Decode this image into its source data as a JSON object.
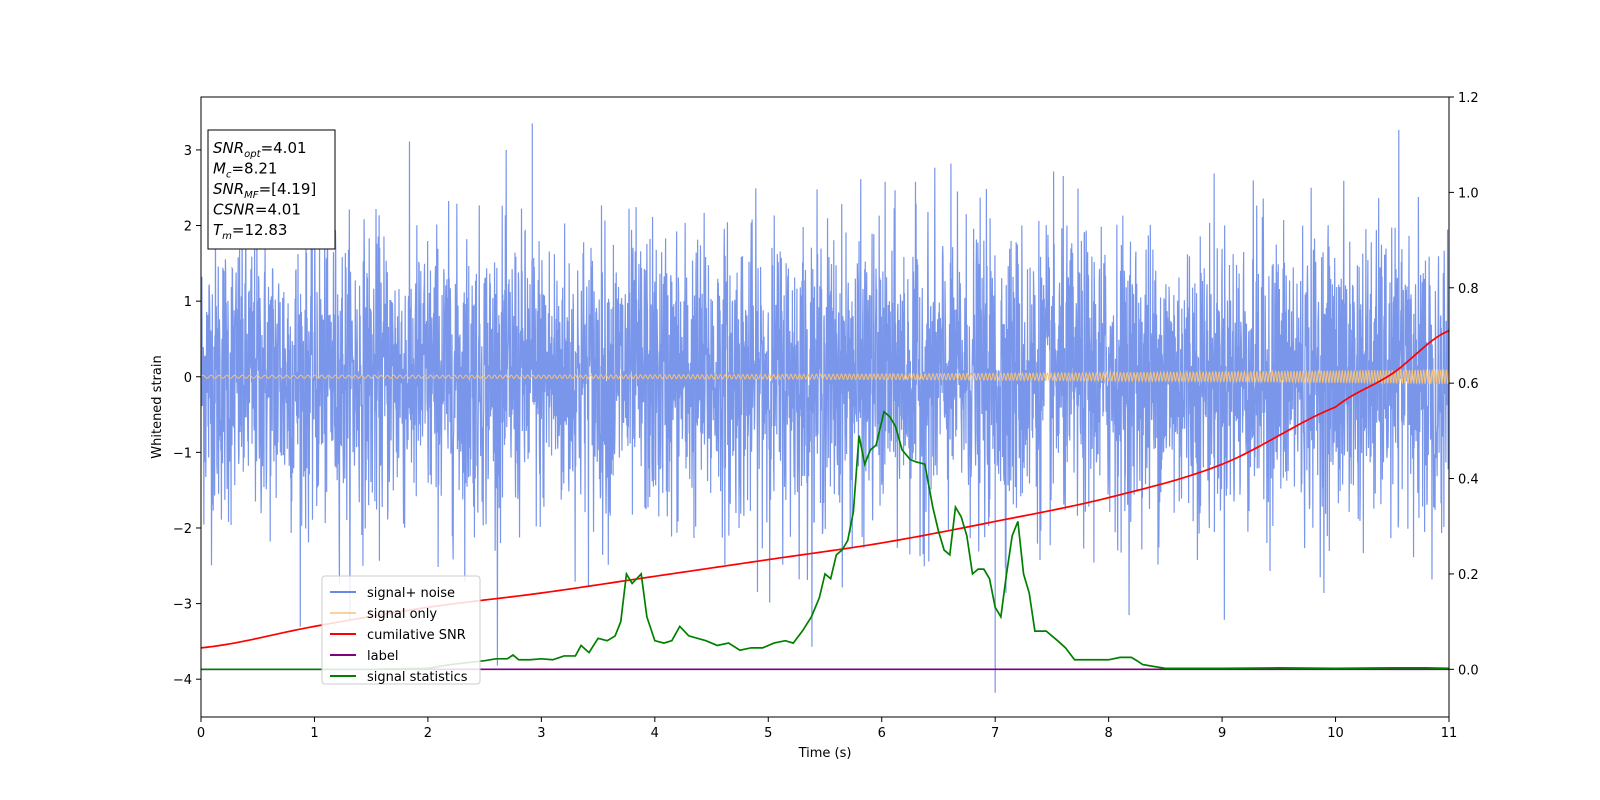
{
  "chart_data": {
    "type": "line",
    "xlabel": "Time (s)",
    "ylabel": "Whitened strain",
    "xlim": [
      0,
      11
    ],
    "ylim": [
      -4.5,
      3.7
    ],
    "y2lim": [
      -0.1,
      1.2
    ],
    "x_ticks": [
      0,
      1,
      2,
      3,
      4,
      5,
      6,
      7,
      8,
      9,
      10,
      11
    ],
    "y_ticks": [
      -4,
      -3,
      -2,
      -1,
      0,
      1,
      2,
      3
    ],
    "y2_ticks": [
      "0.0",
      "0.2",
      "0.4",
      "0.6",
      "0.8",
      "1.0",
      "1.2"
    ],
    "grid": false,
    "legend_position": "lower-left",
    "colors": {
      "noise": "#6688e8",
      "signal": "#f5c27a",
      "csnr": "#ff0000",
      "label": "#800080",
      "stat": "#008000"
    },
    "series": [
      {
        "name": "signal+ noise",
        "axis": "left",
        "description_values": "dense whitened noise, approx N(0,1) with spikes to about +3.3 and -4.2",
        "x_range": [
          0,
          11
        ],
        "y_extremes": {
          "max": 3.35,
          "min": -4.18
        }
      },
      {
        "name": "signal only",
        "axis": "left",
        "amplitude_start": 0.02,
        "amplitude_end": 0.1,
        "x_range": [
          0,
          11
        ]
      },
      {
        "name": "cumilative SNR",
        "axis": "right",
        "x": [
          0,
          1,
          2,
          3,
          4,
          5,
          6,
          7,
          8,
          9,
          10,
          10.5,
          11
        ],
        "y": [
          0.045,
          0.09,
          0.13,
          0.16,
          0.195,
          0.23,
          0.265,
          0.31,
          0.36,
          0.43,
          0.55,
          0.62,
          0.71
        ]
      },
      {
        "name": "label",
        "axis": "right",
        "x": [
          0,
          11
        ],
        "y": [
          0,
          0
        ]
      },
      {
        "name": "signal statistics",
        "axis": "right",
        "x": [
          0,
          0.5,
          1,
          1.5,
          2,
          2.2,
          2.5,
          2.6,
          2.7,
          2.75,
          2.8,
          2.9,
          3.0,
          3.1,
          3.2,
          3.3,
          3.35,
          3.42,
          3.5,
          3.58,
          3.65,
          3.7,
          3.75,
          3.8,
          3.88,
          3.93,
          4.0,
          4.08,
          4.15,
          4.22,
          4.3,
          4.45,
          4.55,
          4.65,
          4.75,
          4.85,
          4.95,
          5.05,
          5.15,
          5.22,
          5.3,
          5.38,
          5.45,
          5.5,
          5.55,
          5.6,
          5.65,
          5.7,
          5.75,
          5.8,
          5.85,
          5.9,
          5.95,
          6.02,
          6.07,
          6.12,
          6.18,
          6.25,
          6.3,
          6.38,
          6.45,
          6.5,
          6.55,
          6.6,
          6.65,
          6.7,
          6.75,
          6.8,
          6.85,
          6.9,
          6.95,
          7.0,
          7.05,
          7.1,
          7.15,
          7.2,
          7.25,
          7.3,
          7.35,
          7.45,
          7.5,
          7.55,
          7.62,
          7.7,
          7.8,
          7.9,
          8.0,
          8.1,
          8.2,
          8.25,
          8.3,
          8.5,
          9.0,
          9.5,
          10.0,
          10.5,
          10.8,
          11.0
        ],
        "y": [
          0.0,
          0.0,
          0.0,
          0.0,
          0.002,
          0.01,
          0.018,
          0.022,
          0.022,
          0.03,
          0.02,
          0.02,
          0.022,
          0.02,
          0.028,
          0.028,
          0.05,
          0.035,
          0.065,
          0.06,
          0.07,
          0.1,
          0.2,
          0.18,
          0.2,
          0.11,
          0.06,
          0.055,
          0.06,
          0.09,
          0.07,
          0.06,
          0.05,
          0.055,
          0.04,
          0.045,
          0.045,
          0.055,
          0.06,
          0.055,
          0.08,
          0.11,
          0.15,
          0.2,
          0.19,
          0.24,
          0.25,
          0.27,
          0.33,
          0.49,
          0.43,
          0.46,
          0.47,
          0.54,
          0.53,
          0.51,
          0.46,
          0.44,
          0.435,
          0.43,
          0.34,
          0.29,
          0.25,
          0.24,
          0.34,
          0.32,
          0.28,
          0.2,
          0.21,
          0.21,
          0.19,
          0.13,
          0.11,
          0.2,
          0.28,
          0.31,
          0.2,
          0.16,
          0.08,
          0.08,
          0.07,
          0.06,
          0.045,
          0.02,
          0.02,
          0.02,
          0.02,
          0.025,
          0.025,
          0.018,
          0.01,
          0.002,
          0.002,
          0.003,
          0.002,
          0.003,
          0.003,
          0.002
        ]
      }
    ],
    "annotation": {
      "lines": [
        {
          "base": "SNR",
          "sub": "opt",
          "value": "=4.01"
        },
        {
          "base": "M",
          "sub": "c",
          "value": "=8.21"
        },
        {
          "base": "SNR",
          "sub": "MF",
          "value": "=[4.19]"
        },
        {
          "base": "CSNR",
          "sub": "",
          "value": "=4.01"
        },
        {
          "base": "T",
          "sub": "m",
          "value": "=12.83"
        }
      ]
    }
  }
}
